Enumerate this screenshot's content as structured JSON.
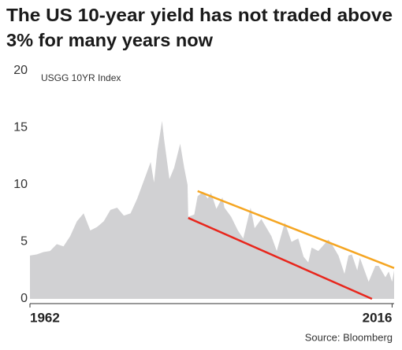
{
  "chart_data": {
    "type": "area",
    "title": [
      "The US 10-year yield has not traded above",
      "3% for many years now"
    ],
    "source": "Source: Bloomberg",
    "series": [
      {
        "name": "USGG 10YR Index",
        "color": "#d1d1d3",
        "x": [
          1962,
          1963,
          1964,
          1965,
          1966,
          1967,
          1968,
          1969,
          1970,
          1971,
          1972,
          1973,
          1974,
          1975,
          1976,
          1977,
          1978,
          1979,
          1980,
          1980.5,
          1981,
          1981.7,
          1982,
          1982.8,
          1983.5,
          1984.4,
          1985,
          1985.5,
          1985.6,
          1986.5,
          1987,
          1987.8,
          1988.5,
          1989,
          1989.8,
          1990.7,
          1991,
          1992,
          1993,
          1993.8,
          1994.9,
          1995.5,
          1996.5,
          1997,
          1998,
          1998.8,
          2000,
          2001,
          2002,
          2002.8,
          2003.5,
          2004,
          2005,
          2006.5,
          2007,
          2008,
          2008.9,
          2009.5,
          2010,
          2010.8,
          2011.2,
          2012.5,
          2013.5,
          2014,
          2015,
          2015.5,
          2016,
          2016.3
        ],
        "values": [
          3.8,
          3.9,
          4.1,
          4.2,
          4.8,
          4.6,
          5.5,
          6.8,
          7.5,
          6.0,
          6.3,
          6.8,
          7.8,
          8.0,
          7.3,
          7.5,
          8.8,
          10.4,
          12.0,
          10.2,
          13.0,
          15.6,
          14.0,
          10.5,
          11.5,
          13.6,
          11.5,
          10.0,
          7.2,
          7.4,
          9.0,
          9.4,
          8.8,
          9.3,
          7.9,
          8.9,
          8.0,
          7.2,
          6.0,
          5.3,
          8.0,
          6.2,
          7.0,
          6.5,
          5.5,
          4.2,
          6.7,
          5.0,
          5.3,
          3.7,
          3.2,
          4.5,
          4.2,
          5.2,
          4.8,
          3.8,
          2.2,
          3.8,
          3.9,
          2.5,
          3.6,
          1.5,
          2.9,
          2.9,
          1.9,
          2.4,
          1.5,
          2.5
        ]
      }
    ],
    "trend_lines": [
      {
        "color": "#f5a623",
        "x": [
          1987.0,
          2016.3
        ],
        "values": [
          9.45,
          2.7
        ]
      },
      {
        "color": "#e8261c",
        "x": [
          1985.6,
          2013.0
        ],
        "values": [
          7.1,
          0
        ]
      }
    ],
    "xlim": [
      1962,
      2016.3
    ],
    "xticks": [
      1962,
      2016
    ],
    "ylim": [
      0,
      20
    ],
    "yticks": [
      0,
      5,
      10,
      15,
      20
    ],
    "grid": false
  }
}
